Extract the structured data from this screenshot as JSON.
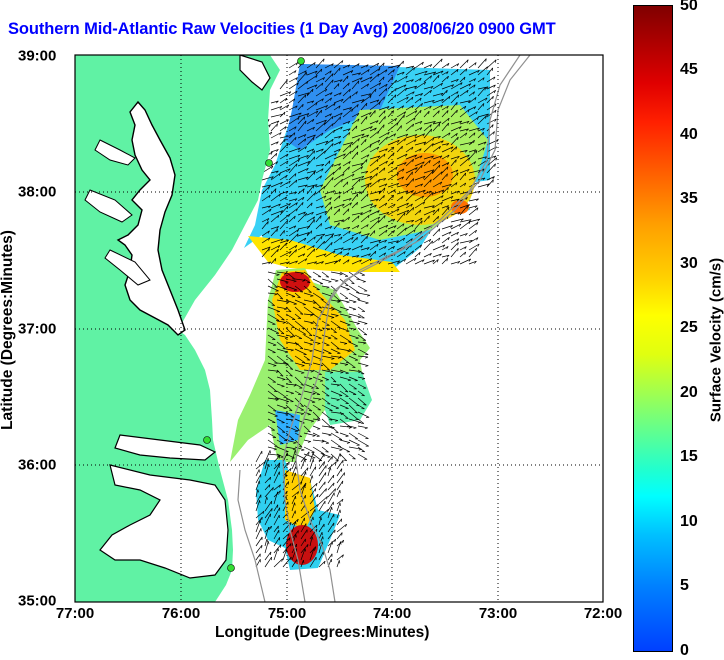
{
  "title": "Southern Mid-Atlantic Raw Velocities (1 Day Avg) 2008/06/20 0900 GMT",
  "xlabel": "Longitude (Degrees:Minutes)",
  "ylabel": "Latitude (Degrees:Minutes)",
  "x_ticks": [
    "77:00",
    "76:00",
    "75:00",
    "74:00",
    "73:00",
    "72:00"
  ],
  "y_ticks": [
    "39:00",
    "38:00",
    "37:00",
    "36:00",
    "35:00"
  ],
  "colorbar": {
    "label": "Surface Velocity (cm/s)",
    "ticks": [
      "50",
      "45",
      "40",
      "35",
      "30",
      "25",
      "20",
      "15",
      "10",
      "5",
      "0"
    ],
    "range": [
      0,
      50
    ]
  },
  "colors": {
    "land": "#60f2a4",
    "title": "#0000ff",
    "coast": "#000000",
    "bathymetry": "#909090",
    "station": "#33dd33"
  }
}
